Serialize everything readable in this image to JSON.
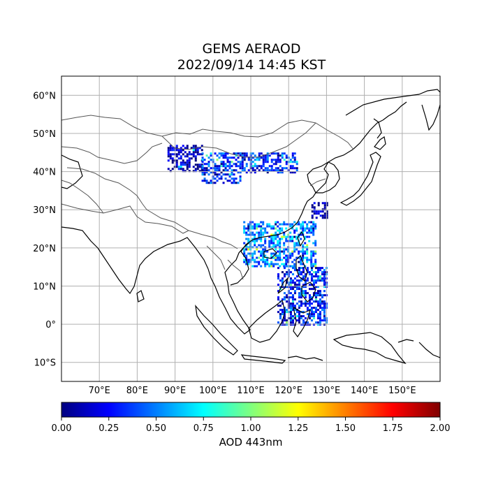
{
  "title": {
    "line1": "GEMS AERAOD",
    "line2": "2022/09/14 14:45 KST"
  },
  "map": {
    "lon_range": [
      60,
      160
    ],
    "lat_range": [
      -15,
      65
    ],
    "lon_ticks": [
      {
        "value": 70,
        "label": "70°E"
      },
      {
        "value": 80,
        "label": "80°E"
      },
      {
        "value": 90,
        "label": "90°E"
      },
      {
        "value": 100,
        "label": "100°E"
      },
      {
        "value": 110,
        "label": "110°E"
      },
      {
        "value": 120,
        "label": "120°E"
      },
      {
        "value": 130,
        "label": "130°E"
      },
      {
        "value": 140,
        "label": "140°E"
      },
      {
        "value": 150,
        "label": "150°E"
      }
    ],
    "lat_ticks": [
      {
        "value": 60,
        "label": "60°N"
      },
      {
        "value": 50,
        "label": "50°N"
      },
      {
        "value": 40,
        "label": "40°N"
      },
      {
        "value": 30,
        "label": "30°N"
      },
      {
        "value": 20,
        "label": "20°N"
      },
      {
        "value": 10,
        "label": "10°N"
      },
      {
        "value": 0,
        "label": "0°"
      },
      {
        "value": -10,
        "label": "10°S"
      }
    ],
    "aod_regions": [
      {
        "name": "mongolia-west",
        "lon": [
          88,
          97
        ],
        "lat": [
          40,
          47
        ],
        "level": 0.1
      },
      {
        "name": "mongolia-central",
        "lon": [
          97,
          107
        ],
        "lat": [
          37,
          45
        ],
        "level": 0.35
      },
      {
        "name": "inner-mongolia",
        "lon": [
          107,
          122
        ],
        "lat": [
          40,
          45
        ],
        "level": 0.3
      },
      {
        "name": "yellow-sea-plume",
        "lon": [
          126,
          130
        ],
        "lat": [
          28,
          32
        ],
        "level": 0.05
      },
      {
        "name": "south-china",
        "lon": [
          108,
          127
        ],
        "lat": [
          15,
          27
        ],
        "level": 0.5
      },
      {
        "name": "philippines",
        "lon": [
          117,
          130
        ],
        "lat": [
          0,
          15
        ],
        "level": 0.3
      }
    ]
  },
  "colorbar": {
    "label": "AOD 443nm",
    "min": 0.0,
    "max": 2.0,
    "colormap": "jet",
    "ticks": [
      {
        "value": 0.0,
        "label": "0.00"
      },
      {
        "value": 0.25,
        "label": "0.25"
      },
      {
        "value": 0.5,
        "label": "0.50"
      },
      {
        "value": 0.75,
        "label": "0.75"
      },
      {
        "value": 1.0,
        "label": "1.00"
      },
      {
        "value": 1.25,
        "label": "1.25"
      },
      {
        "value": 1.5,
        "label": "1.50"
      },
      {
        "value": 1.75,
        "label": "1.75"
      },
      {
        "value": 2.0,
        "label": "2.00"
      }
    ],
    "stops": [
      "#00007f",
      "#0000ff",
      "#007fff",
      "#00ffff",
      "#7fff7f",
      "#ffff00",
      "#ff7f00",
      "#ff0000",
      "#7f0000"
    ]
  }
}
